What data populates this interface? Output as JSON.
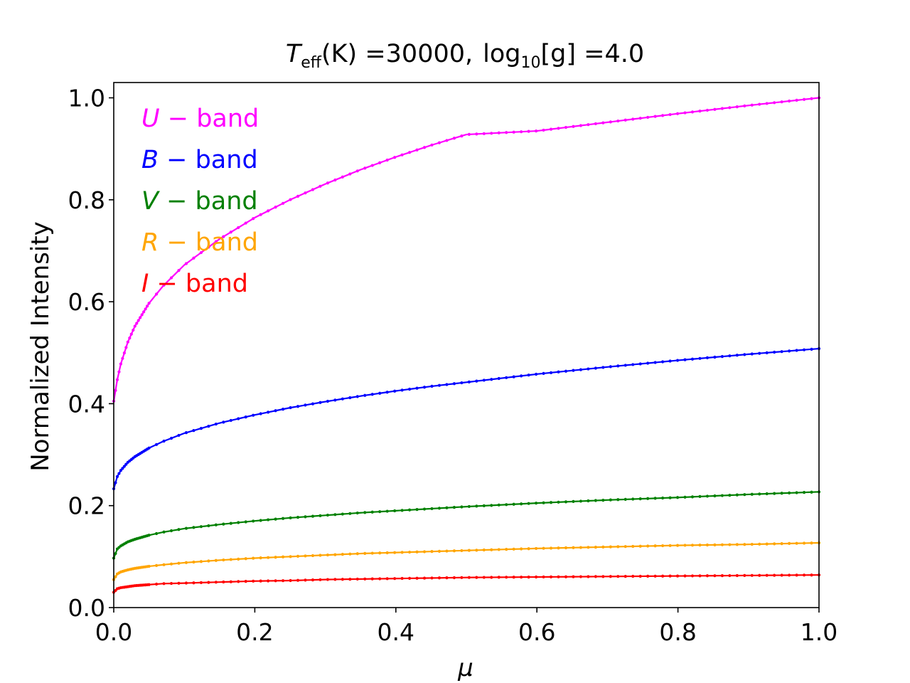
{
  "chart_data": {
    "type": "line",
    "title_parts": {
      "t_symbol": "T",
      "t_subscript": "eff",
      "t_unit": "(K) =30000,",
      "log_base": "log",
      "log_subscript": "10",
      "g_expression": "[g] =4.0"
    },
    "xlabel": "μ",
    "ylabel": "Normalized Intensity",
    "xlim": [
      0.0,
      1.0
    ],
    "ylim": [
      0.0,
      1.03
    ],
    "xticks": [
      "0.0",
      "0.2",
      "0.4",
      "0.6",
      "0.8",
      "1.0"
    ],
    "yticks": [
      "0.0",
      "0.2",
      "0.4",
      "0.6",
      "0.8",
      "1.0"
    ],
    "grid": false,
    "legend_location": "upper-left",
    "series": [
      {
        "name": "U − band",
        "band": "U",
        "suffix": " − band",
        "color": "#ff00ff",
        "x": [
          0.0,
          0.005,
          0.01,
          0.02,
          0.03,
          0.05,
          0.07,
          0.1,
          0.15,
          0.2,
          0.25,
          0.3,
          0.35,
          0.4,
          0.45,
          0.5,
          0.6,
          0.7,
          0.8,
          0.9,
          1.0
        ],
        "y": [
          0.405,
          0.447,
          0.478,
          0.521,
          0.552,
          0.597,
          0.631,
          0.672,
          0.723,
          0.765,
          0.8,
          0.831,
          0.859,
          0.884,
          0.907,
          0.928,
          0.935,
          0.952,
          0.969,
          0.985,
          1.0
        ]
      },
      {
        "name": "B − band",
        "band": "B",
        "suffix": " − band",
        "color": "#0000ff",
        "x": [
          0.0,
          0.005,
          0.01,
          0.02,
          0.03,
          0.05,
          0.07,
          0.1,
          0.15,
          0.2,
          0.25,
          0.3,
          0.35,
          0.4,
          0.45,
          0.5,
          0.6,
          0.7,
          0.8,
          0.9,
          1.0
        ],
        "y": [
          0.233,
          0.257,
          0.269,
          0.285,
          0.296,
          0.313,
          0.326,
          0.342,
          0.362,
          0.378,
          0.392,
          0.404,
          0.415,
          0.425,
          0.434,
          0.442,
          0.458,
          0.472,
          0.485,
          0.497,
          0.508
        ]
      },
      {
        "name": "V − band",
        "band": "V",
        "suffix": " − band",
        "color": "#008000",
        "x": [
          0.0,
          0.005,
          0.01,
          0.02,
          0.03,
          0.05,
          0.07,
          0.1,
          0.15,
          0.2,
          0.25,
          0.3,
          0.35,
          0.4,
          0.45,
          0.5,
          0.6,
          0.7,
          0.8,
          0.9,
          1.0
        ],
        "y": [
          0.097,
          0.115,
          0.121,
          0.129,
          0.134,
          0.142,
          0.148,
          0.155,
          0.163,
          0.17,
          0.176,
          0.181,
          0.186,
          0.19,
          0.194,
          0.198,
          0.205,
          0.211,
          0.216,
          0.222,
          0.227
        ]
      },
      {
        "name": "R − band",
        "band": "R",
        "suffix": " − band",
        "color": "#ffa500",
        "x": [
          0.0,
          0.005,
          0.01,
          0.02,
          0.03,
          0.05,
          0.07,
          0.1,
          0.15,
          0.2,
          0.25,
          0.3,
          0.35,
          0.4,
          0.45,
          0.5,
          0.6,
          0.7,
          0.8,
          0.9,
          1.0
        ],
        "y": [
          0.055,
          0.066,
          0.07,
          0.074,
          0.077,
          0.081,
          0.084,
          0.088,
          0.093,
          0.097,
          0.1,
          0.103,
          0.106,
          0.108,
          0.11,
          0.112,
          0.116,
          0.119,
          0.122,
          0.124,
          0.127
        ]
      },
      {
        "name": "I − band",
        "band": "I",
        "suffix": " − band",
        "color": "#ff0000",
        "x": [
          0.0,
          0.005,
          0.01,
          0.02,
          0.03,
          0.05,
          0.07,
          0.1,
          0.15,
          0.2,
          0.25,
          0.3,
          0.35,
          0.4,
          0.45,
          0.5,
          0.6,
          0.7,
          0.8,
          0.9,
          1.0
        ],
        "y": [
          0.03,
          0.037,
          0.039,
          0.041,
          0.043,
          0.045,
          0.047,
          0.048,
          0.05,
          0.052,
          0.053,
          0.055,
          0.056,
          0.057,
          0.058,
          0.059,
          0.06,
          0.061,
          0.062,
          0.063,
          0.064
        ]
      }
    ]
  }
}
